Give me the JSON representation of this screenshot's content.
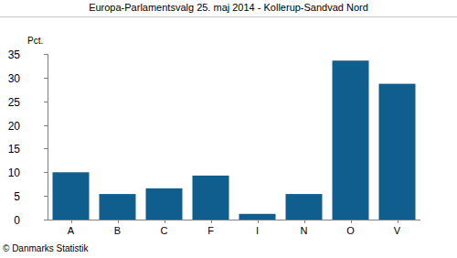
{
  "chart_data": {
    "type": "bar",
    "title": "Europa-Parlamentsvalg 25. maj 2014 - Kollerup-Sandvad Nord",
    "y_label": "Pct.",
    "annotation": "© Danmarks Statistik",
    "categories": [
      "A",
      "B",
      "C",
      "F",
      "I",
      "N",
      "O",
      "V"
    ],
    "values": [
      10.0,
      5.4,
      6.6,
      9.3,
      1.2,
      5.4,
      33.6,
      28.7
    ],
    "color": "#0f5e8d",
    "ylim": [
      0,
      35
    ],
    "yticks": [
      0,
      5,
      10,
      15,
      20,
      25,
      30,
      35
    ],
    "grid": false
  }
}
